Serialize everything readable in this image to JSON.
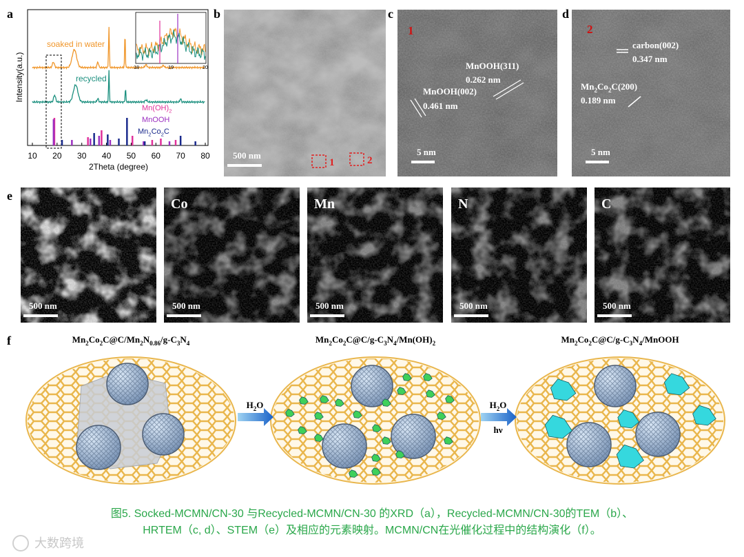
{
  "panels": {
    "a": {
      "label": "a",
      "y_label": "Intensity(a.u.)",
      "x_label": "2Theta (degree)",
      "xticks": [
        "10",
        "20",
        "30",
        "40",
        "50",
        "60",
        "70",
        "80"
      ],
      "curves": [
        "soaked in water",
        "recycled"
      ],
      "inset_ticks": [
        "18",
        "19",
        "20"
      ],
      "legend": [
        [
          "Mn(OH)",
          "2"
        ],
        [
          "MnOOH"
        ],
        [
          "Mn",
          "2",
          "Co",
          "2",
          "C"
        ]
      ]
    },
    "b": {
      "label": "b",
      "scale": "500 nm",
      "regions": [
        "1",
        "2"
      ]
    },
    "c": {
      "label": "c",
      "marker": "1",
      "annotations": [
        [
          "MnOOH(311)",
          "0.262 nm"
        ],
        [
          "MnOOH(002)",
          "0.461 nm"
        ]
      ],
      "scale": "5 nm"
    },
    "d": {
      "label": "d",
      "marker": "2",
      "annotations": [
        [
          [
            "carbon(002)"
          ],
          "0.347 nm"
        ],
        [
          [
            "Mn",
            "2",
            "Co",
            "2",
            "C(200)"
          ],
          "0.189 nm"
        ]
      ],
      "scale": "5 nm"
    },
    "e": {
      "label": "e",
      "maps": [
        {
          "scale": "500 nm"
        },
        {
          "element": "Co",
          "scale": "500 nm"
        },
        {
          "element": "Mn",
          "scale": "500 nm"
        },
        {
          "element": "N",
          "scale": "500 nm"
        },
        {
          "element": "C",
          "scale": "500 nm"
        }
      ]
    },
    "f": {
      "label": "f",
      "stages": [
        [
          "Mn",
          "2",
          "Co",
          "2",
          "C@C/Mn",
          "2",
          "N",
          "0.86",
          "/g-C",
          "3",
          "N",
          "4"
        ],
        [
          "Mn",
          "2",
          "Co",
          "2",
          "C@C/g-C",
          "3",
          "N",
          "4",
          "/Mn(OH)",
          "2"
        ],
        [
          "Mn",
          "2",
          "Co",
          "2",
          "C@C/g-C",
          "3",
          "N",
          "4",
          "/MnOOH"
        ]
      ],
      "arrows": [
        [
          [
            "H",
            "2",
            "O"
          ]
        ],
        [
          [
            "H",
            "2",
            "O"
          ],
          [
            "hν"
          ]
        ]
      ]
    }
  },
  "caption": [
    "图5. Socked-MCMN/CN-30 与Recycled-MCMN/CN-30 的XRD（a），Recycled-MCMN/CN-30的TEM（b）、",
    "HRTEM（c, d）、STEM（e）及相应的元素映射。MCMN/CN在光催化过程中的结构演化（f）。"
  ],
  "watermark": "大数跨境"
}
